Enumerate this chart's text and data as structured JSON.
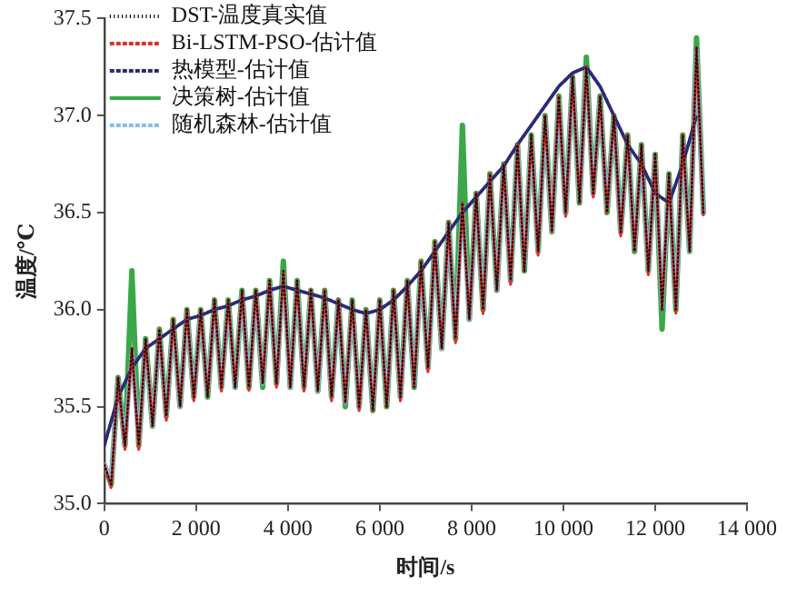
{
  "chart_data": {
    "type": "line",
    "xlabel": "时间/s",
    "ylabel": "温度/℃",
    "xlim": [
      0,
      14000
    ],
    "ylim": [
      35,
      37.5
    ],
    "xticks": [
      0,
      {
        "value": 2000,
        "label": "2 000"
      },
      {
        "value": 4000,
        "label": "4 000"
      },
      {
        "value": 6000,
        "label": "6 000"
      },
      {
        "value": 8000,
        "label": "8 000"
      },
      {
        "value": 10000,
        "label": "10 000"
      },
      {
        "value": 12000,
        "label": "12 000"
      },
      {
        "value": 14000,
        "label": "14 000"
      }
    ],
    "yticks": [
      {
        "value": 35,
        "label": "35.0"
      },
      35.5,
      {
        "value": 36,
        "label": "36.0"
      },
      36.5,
      {
        "value": 37,
        "label": "37.0"
      },
      37.5
    ],
    "grid": false,
    "legend": "top left",
    "marker": "none",
    "x": [
      0,
      150,
      300,
      450,
      600,
      750,
      900,
      1050,
      1200,
      1350,
      1500,
      1650,
      1800,
      1950,
      2100,
      2250,
      2400,
      2550,
      2700,
      2850,
      3000,
      3150,
      3300,
      3450,
      3600,
      3750,
      3900,
      4050,
      4200,
      4350,
      4500,
      4650,
      4800,
      4950,
      5100,
      5250,
      5400,
      5550,
      5700,
      5850,
      6000,
      6150,
      6300,
      6450,
      6600,
      6750,
      6900,
      7050,
      7200,
      7350,
      7500,
      7650,
      7800,
      7950,
      8100,
      8250,
      8400,
      8550,
      8700,
      8850,
      9000,
      9150,
      9300,
      9450,
      9600,
      9750,
      9900,
      10050,
      10200,
      10350,
      10500,
      10650,
      10800,
      10950,
      11100,
      11250,
      11400,
      11550,
      11700,
      11850,
      12000,
      12150,
      12300,
      12450,
      12600,
      12750,
      12900,
      13050
    ],
    "series": [
      {
        "name": "DST-温度真实值",
        "color": "#111111",
        "line_style": "dotted",
        "values": [
          35.2,
          35.1,
          35.65,
          35.3,
          35.8,
          35.3,
          35.85,
          35.4,
          35.9,
          35.45,
          35.95,
          35.5,
          36.0,
          35.55,
          36.0,
          35.55,
          36.05,
          35.6,
          36.05,
          35.6,
          36.1,
          35.6,
          36.1,
          35.62,
          36.15,
          35.62,
          36.2,
          35.6,
          36.15,
          35.6,
          36.1,
          35.58,
          36.1,
          35.55,
          36.05,
          35.52,
          36.05,
          35.5,
          36.0,
          35.48,
          36.05,
          35.5,
          36.1,
          35.55,
          36.15,
          35.6,
          36.25,
          35.7,
          36.35,
          35.8,
          36.45,
          35.85,
          36.55,
          35.95,
          36.6,
          36.0,
          36.7,
          36.1,
          36.75,
          36.15,
          36.85,
          36.2,
          36.9,
          36.3,
          37.0,
          36.4,
          37.1,
          36.5,
          37.2,
          36.55,
          37.25,
          36.6,
          37.1,
          36.5,
          37.0,
          36.4,
          36.9,
          36.3,
          36.85,
          36.2,
          36.8,
          36.0,
          36.7,
          36.0,
          36.9,
          36.3,
          37.35,
          36.5
        ]
      },
      {
        "name": "Bi-LSTM-PSO-估计值",
        "color": "#e0302a",
        "line_style": "dashed",
        "values": [
          35.2,
          35.08,
          35.65,
          35.28,
          35.8,
          35.28,
          35.85,
          35.4,
          35.9,
          35.43,
          35.95,
          35.5,
          36.0,
          35.53,
          36.0,
          35.55,
          36.05,
          35.58,
          36.05,
          35.6,
          36.1,
          35.58,
          36.1,
          35.62,
          36.15,
          35.6,
          36.2,
          35.6,
          36.15,
          35.58,
          36.1,
          35.58,
          36.1,
          35.53,
          36.05,
          35.52,
          36.05,
          35.48,
          36.0,
          35.48,
          36.05,
          35.5,
          36.1,
          35.53,
          36.15,
          35.6,
          36.25,
          35.68,
          36.35,
          35.8,
          36.45,
          35.83,
          36.55,
          35.95,
          36.6,
          35.98,
          36.7,
          36.1,
          36.75,
          36.13,
          36.85,
          36.2,
          36.9,
          36.28,
          37.0,
          36.4,
          37.1,
          36.48,
          37.2,
          36.55,
          37.25,
          36.58,
          37.1,
          36.5,
          37.0,
          36.38,
          36.9,
          36.3,
          36.85,
          36.18,
          36.8,
          36.0,
          36.7,
          35.98,
          36.9,
          36.3,
          37.35,
          36.48
        ]
      },
      {
        "name": "热模型-估计值",
        "color": "#2a2a78",
        "line_style": "dashed",
        "x": [
          0,
          300,
          600,
          900,
          1200,
          1500,
          1800,
          2100,
          2400,
          2700,
          3000,
          3300,
          3600,
          3900,
          4200,
          4500,
          4800,
          5100,
          5400,
          5700,
          6000,
          6300,
          6600,
          6900,
          7200,
          7500,
          7800,
          8100,
          8400,
          8700,
          9000,
          9300,
          9600,
          9900,
          10200,
          10500,
          10800,
          11100,
          11400,
          11700,
          12000,
          12300,
          12600,
          12900
        ],
        "values": [
          35.3,
          35.55,
          35.7,
          35.8,
          35.85,
          35.9,
          35.95,
          35.97,
          36.0,
          36.02,
          36.05,
          36.07,
          36.1,
          36.12,
          36.1,
          36.08,
          36.06,
          36.03,
          36.0,
          35.98,
          36.0,
          36.05,
          36.12,
          36.2,
          36.3,
          36.4,
          36.5,
          36.58,
          36.66,
          36.74,
          36.85,
          36.95,
          37.05,
          37.15,
          37.22,
          37.25,
          37.15,
          37.0,
          36.85,
          36.75,
          36.6,
          36.55,
          36.75,
          37.0
        ]
      },
      {
        "name": "决策树-估计值",
        "color": "#3aa84a",
        "line_style": "solid",
        "values": [
          35.2,
          35.1,
          35.65,
          35.3,
          36.2,
          35.3,
          35.85,
          35.4,
          35.9,
          35.45,
          35.95,
          35.5,
          36.0,
          35.55,
          36.0,
          35.55,
          36.05,
          35.6,
          36.05,
          35.6,
          36.1,
          35.6,
          36.1,
          35.6,
          36.15,
          35.62,
          36.25,
          35.6,
          36.15,
          35.6,
          36.1,
          35.58,
          36.1,
          35.55,
          36.05,
          35.5,
          36.05,
          35.5,
          36.0,
          35.48,
          36.05,
          35.5,
          36.1,
          35.55,
          36.15,
          35.6,
          36.25,
          35.7,
          36.35,
          35.8,
          36.45,
          35.85,
          36.95,
          35.95,
          36.6,
          36.0,
          36.7,
          36.1,
          36.75,
          36.15,
          36.85,
          36.2,
          36.9,
          36.3,
          37.0,
          36.4,
          37.1,
          36.5,
          37.2,
          36.55,
          37.3,
          36.6,
          37.1,
          36.5,
          37.0,
          36.4,
          36.9,
          36.3,
          36.85,
          36.2,
          36.8,
          35.9,
          36.7,
          36.0,
          36.9,
          36.3,
          37.4,
          36.5
        ]
      },
      {
        "name": "随机森林-估计值",
        "color": "#7fbfe6",
        "line_style": "dashed",
        "values": [
          35.2,
          35.12,
          35.63,
          35.3,
          35.78,
          35.32,
          35.83,
          35.4,
          35.88,
          35.45,
          35.93,
          35.5,
          35.98,
          35.55,
          35.98,
          35.57,
          36.03,
          35.6,
          36.03,
          35.6,
          36.08,
          35.62,
          36.08,
          35.62,
          36.13,
          35.63,
          36.18,
          35.6,
          36.13,
          35.6,
          36.08,
          35.58,
          36.08,
          35.55,
          36.03,
          35.52,
          36.03,
          35.5,
          35.98,
          35.5,
          36.03,
          35.52,
          36.08,
          35.55,
          36.13,
          35.62,
          36.23,
          35.7,
          36.33,
          35.8,
          36.43,
          35.87,
          36.53,
          35.95,
          36.58,
          36.02,
          36.68,
          36.1,
          36.73,
          36.15,
          36.83,
          36.22,
          36.88,
          36.3,
          36.98,
          36.4,
          37.08,
          36.5,
          37.18,
          36.57,
          37.23,
          36.6,
          37.08,
          36.52,
          36.98,
          36.4,
          36.88,
          36.32,
          36.83,
          36.2,
          36.78,
          36.02,
          36.68,
          36.02,
          36.88,
          36.3,
          37.33,
          36.5
        ]
      }
    ]
  }
}
